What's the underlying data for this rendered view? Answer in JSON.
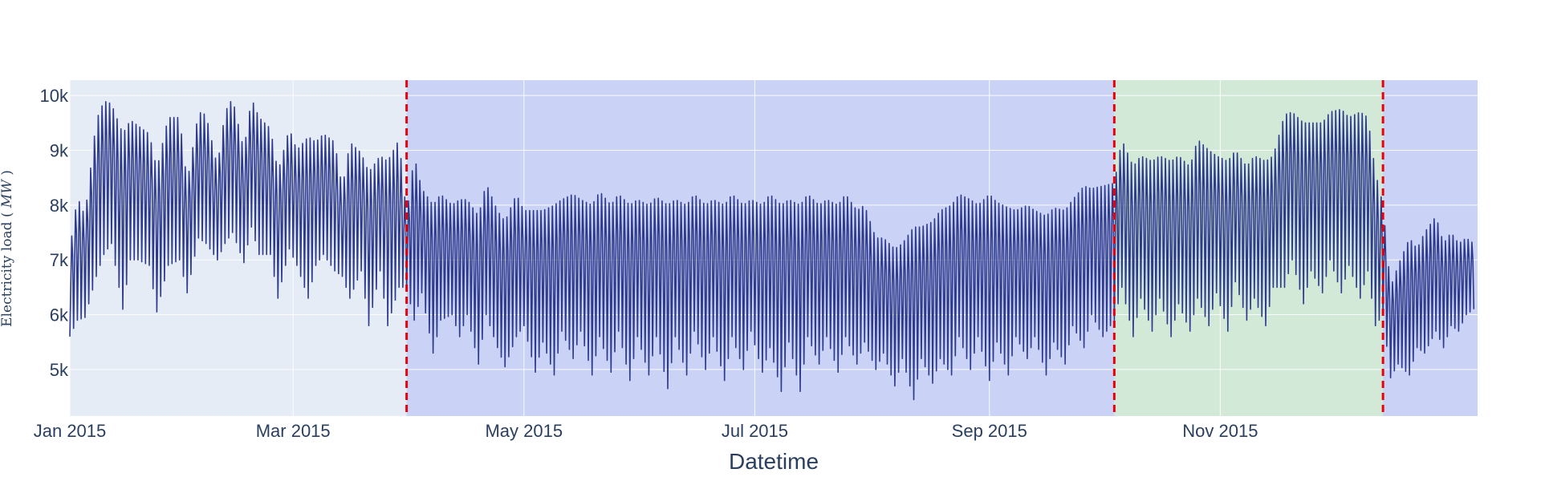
{
  "chart_data": {
    "type": "line",
    "title": "",
    "xlabel": "Datetime",
    "ylabel": "Electricity load (MW)",
    "ylabel_parts": {
      "main": "Electricity load",
      "unit": "MW"
    },
    "xlim": [
      "2015-01-01",
      "2016-01-08"
    ],
    "ylim": [
      4150,
      10280
    ],
    "grid": true,
    "legend": "none",
    "x_ticks": [
      {
        "date": "2015-01-01",
        "label": "Jan 2015"
      },
      {
        "date": "2015-03-01",
        "label": "Mar 2015"
      },
      {
        "date": "2015-05-01",
        "label": "May 2015"
      },
      {
        "date": "2015-07-01",
        "label": "Jul 2015"
      },
      {
        "date": "2015-09-01",
        "label": "Sep 2015"
      },
      {
        "date": "2015-11-01",
        "label": "Nov 2015"
      }
    ],
    "y_ticks": [
      {
        "value": 5000,
        "label": "5k"
      },
      {
        "value": 6000,
        "label": "6k"
      },
      {
        "value": 7000,
        "label": "7k"
      },
      {
        "value": 8000,
        "label": "8k"
      },
      {
        "value": 9000,
        "label": "9k"
      },
      {
        "value": 10000,
        "label": "10k"
      }
    ],
    "shaded_regions": [
      {
        "start": "2015-03-31",
        "end": "2015-10-04",
        "color": "#b4bdf5",
        "opacity": 0.55
      },
      {
        "start": "2015-10-04",
        "end": "2015-12-14",
        "color": "#c2e8c0",
        "opacity": 0.55
      },
      {
        "start": "2015-12-14",
        "end": "2016-01-08",
        "color": "#b4bdf5",
        "opacity": 0.55
      }
    ],
    "vertical_lines": [
      {
        "date": "2015-03-31",
        "color": "#e8000b",
        "style": "dashed"
      },
      {
        "date": "2015-10-04",
        "color": "#e8000b",
        "style": "dashed"
      },
      {
        "date": "2015-12-14",
        "color": "#e8000b",
        "style": "dashed"
      }
    ],
    "series": [
      {
        "color": "#2e3a8c",
        "sampling": "daily envelope: low and high load per day",
        "points": [
          {
            "x": "2015-01-01",
            "low": 5600,
            "high": 7200
          },
          {
            "x": "2015-01-03",
            "low": 5900,
            "high": 8150
          },
          {
            "x": "2015-01-05",
            "low": 5950,
            "high": 7800
          },
          {
            "x": "2015-01-08",
            "low": 6700,
            "high": 9550
          },
          {
            "x": "2015-01-10",
            "low": 7100,
            "high": 9900
          },
          {
            "x": "2015-01-12",
            "low": 7300,
            "high": 9850
          },
          {
            "x": "2015-01-15",
            "low": 6100,
            "high": 9300
          },
          {
            "x": "2015-01-17",
            "low": 7000,
            "high": 9550
          },
          {
            "x": "2015-01-19",
            "low": 7000,
            "high": 9450
          },
          {
            "x": "2015-01-22",
            "low": 6900,
            "high": 9300
          },
          {
            "x": "2015-01-24",
            "low": 6050,
            "high": 8650
          },
          {
            "x": "2015-01-27",
            "low": 6900,
            "high": 9600
          },
          {
            "x": "2015-01-30",
            "low": 7000,
            "high": 9600
          },
          {
            "x": "2015-02-01",
            "low": 6400,
            "high": 8400
          },
          {
            "x": "2015-02-04",
            "low": 7400,
            "high": 9700
          },
          {
            "x": "2015-02-06",
            "low": 7300,
            "high": 9650
          },
          {
            "x": "2015-02-09",
            "low": 7000,
            "high": 8700
          },
          {
            "x": "2015-02-11",
            "low": 7300,
            "high": 9700
          },
          {
            "x": "2015-02-13",
            "low": 7500,
            "high": 9950
          },
          {
            "x": "2015-02-16",
            "low": 6950,
            "high": 9000
          },
          {
            "x": "2015-02-18",
            "low": 7600,
            "high": 9950
          },
          {
            "x": "2015-02-20",
            "low": 7100,
            "high": 9600
          },
          {
            "x": "2015-02-23",
            "low": 7100,
            "high": 9400
          },
          {
            "x": "2015-02-25",
            "low": 6300,
            "high": 8600
          },
          {
            "x": "2015-02-28",
            "low": 7200,
            "high": 9400
          },
          {
            "x": "2015-03-02",
            "low": 6900,
            "high": 9000
          },
          {
            "x": "2015-03-05",
            "low": 6300,
            "high": 9250
          },
          {
            "x": "2015-03-07",
            "low": 6900,
            "high": 9150
          },
          {
            "x": "2015-03-09",
            "low": 7100,
            "high": 9300
          },
          {
            "x": "2015-03-12",
            "low": 6800,
            "high": 9150
          },
          {
            "x": "2015-03-14",
            "low": 6700,
            "high": 8300
          },
          {
            "x": "2015-03-16",
            "low": 6300,
            "high": 9150
          },
          {
            "x": "2015-03-19",
            "low": 6800,
            "high": 8950
          },
          {
            "x": "2015-03-21",
            "low": 5800,
            "high": 8600
          },
          {
            "x": "2015-03-24",
            "low": 6800,
            "high": 8900
          },
          {
            "x": "2015-03-26",
            "low": 5800,
            "high": 8800
          },
          {
            "x": "2015-03-29",
            "low": 6500,
            "high": 9200
          },
          {
            "x": "2015-03-31",
            "low": 6500,
            "high": 7800
          },
          {
            "x": "2015-04-02",
            "low": 5900,
            "high": 8900
          },
          {
            "x": "2015-04-04",
            "low": 6400,
            "high": 8300
          },
          {
            "x": "2015-04-07",
            "low": 5300,
            "high": 8000
          },
          {
            "x": "2015-04-09",
            "low": 5900,
            "high": 8200
          },
          {
            "x": "2015-04-12",
            "low": 6000,
            "high": 8000
          },
          {
            "x": "2015-04-14",
            "low": 5600,
            "high": 8100
          },
          {
            "x": "2015-04-16",
            "low": 6000,
            "high": 8100
          },
          {
            "x": "2015-04-19",
            "low": 5100,
            "high": 7800
          },
          {
            "x": "2015-04-21",
            "low": 6000,
            "high": 8400
          },
          {
            "x": "2015-04-24",
            "low": 5400,
            "high": 7900
          },
          {
            "x": "2015-04-26",
            "low": 5050,
            "high": 7700
          },
          {
            "x": "2015-04-29",
            "low": 5600,
            "high": 8200
          },
          {
            "x": "2015-05-01",
            "low": 5800,
            "high": 7900
          },
          {
            "x": "2015-05-04",
            "low": 4950,
            "high": 7900
          },
          {
            "x": "2015-05-06",
            "low": 5500,
            "high": 7900
          },
          {
            "x": "2015-05-09",
            "low": 4900,
            "high": 8000
          },
          {
            "x": "2015-05-11",
            "low": 5700,
            "high": 8100
          },
          {
            "x": "2015-05-14",
            "low": 5200,
            "high": 8200
          },
          {
            "x": "2015-05-16",
            "low": 5700,
            "high": 8100
          },
          {
            "x": "2015-05-19",
            "low": 4900,
            "high": 8000
          },
          {
            "x": "2015-05-21",
            "low": 5600,
            "high": 8250
          },
          {
            "x": "2015-05-24",
            "low": 4950,
            "high": 8000
          },
          {
            "x": "2015-05-26",
            "low": 5700,
            "high": 8200
          },
          {
            "x": "2015-05-29",
            "low": 4800,
            "high": 8000
          },
          {
            "x": "2015-05-31",
            "low": 5600,
            "high": 8100
          },
          {
            "x": "2015-06-03",
            "low": 4900,
            "high": 8000
          },
          {
            "x": "2015-06-05",
            "low": 5600,
            "high": 8150
          },
          {
            "x": "2015-06-08",
            "low": 4650,
            "high": 8000
          },
          {
            "x": "2015-06-10",
            "low": 5600,
            "high": 8100
          },
          {
            "x": "2015-06-13",
            "low": 4900,
            "high": 8000
          },
          {
            "x": "2015-06-15",
            "low": 5700,
            "high": 8200
          },
          {
            "x": "2015-06-18",
            "low": 5000,
            "high": 8000
          },
          {
            "x": "2015-06-20",
            "low": 5600,
            "high": 8100
          },
          {
            "x": "2015-06-23",
            "low": 4800,
            "high": 8000
          },
          {
            "x": "2015-06-25",
            "low": 5600,
            "high": 8200
          },
          {
            "x": "2015-06-28",
            "low": 5000,
            "high": 8000
          },
          {
            "x": "2015-06-30",
            "low": 5700,
            "high": 8100
          },
          {
            "x": "2015-07-03",
            "low": 4950,
            "high": 8000
          },
          {
            "x": "2015-07-05",
            "low": 5400,
            "high": 8200
          },
          {
            "x": "2015-07-08",
            "low": 4600,
            "high": 8000
          },
          {
            "x": "2015-07-10",
            "low": 5500,
            "high": 8100
          },
          {
            "x": "2015-07-13",
            "low": 4600,
            "high": 8000
          },
          {
            "x": "2015-07-15",
            "low": 5600,
            "high": 8200
          },
          {
            "x": "2015-07-18",
            "low": 5100,
            "high": 8000
          },
          {
            "x": "2015-07-20",
            "low": 5600,
            "high": 8100
          },
          {
            "x": "2015-07-23",
            "low": 4950,
            "high": 8000
          },
          {
            "x": "2015-07-25",
            "low": 5600,
            "high": 8200
          },
          {
            "x": "2015-07-28",
            "low": 5100,
            "high": 7900
          },
          {
            "x": "2015-07-30",
            "low": 5500,
            "high": 8000
          },
          {
            "x": "2015-08-02",
            "low": 5000,
            "high": 7400
          },
          {
            "x": "2015-08-04",
            "low": 5300,
            "high": 7400
          },
          {
            "x": "2015-08-07",
            "low": 4700,
            "high": 7200
          },
          {
            "x": "2015-08-09",
            "low": 5200,
            "high": 7300
          },
          {
            "x": "2015-08-12",
            "low": 4450,
            "high": 7600
          },
          {
            "x": "2015-08-14",
            "low": 5200,
            "high": 7600
          },
          {
            "x": "2015-08-17",
            "low": 4750,
            "high": 7700
          },
          {
            "x": "2015-08-19",
            "low": 5200,
            "high": 7900
          },
          {
            "x": "2015-08-22",
            "low": 4900,
            "high": 8000
          },
          {
            "x": "2015-08-24",
            "low": 5600,
            "high": 8200
          },
          {
            "x": "2015-08-27",
            "low": 5000,
            "high": 8100
          },
          {
            "x": "2015-08-29",
            "low": 5600,
            "high": 8000
          },
          {
            "x": "2015-09-01",
            "low": 4800,
            "high": 8200
          },
          {
            "x": "2015-09-03",
            "low": 5500,
            "high": 8050
          },
          {
            "x": "2015-09-06",
            "low": 4900,
            "high": 7950
          },
          {
            "x": "2015-09-08",
            "low": 5600,
            "high": 7900
          },
          {
            "x": "2015-09-11",
            "low": 5200,
            "high": 8000
          },
          {
            "x": "2015-09-13",
            "low": 5600,
            "high": 7900
          },
          {
            "x": "2015-09-16",
            "low": 4900,
            "high": 7800
          },
          {
            "x": "2015-09-18",
            "low": 5500,
            "high": 7950
          },
          {
            "x": "2015-09-21",
            "low": 5100,
            "high": 7900
          },
          {
            "x": "2015-09-23",
            "low": 5800,
            "high": 8100
          },
          {
            "x": "2015-09-26",
            "low": 5400,
            "high": 8350
          },
          {
            "x": "2015-09-28",
            "low": 6000,
            "high": 8300
          },
          {
            "x": "2015-10-01",
            "low": 5600,
            "high": 8350
          },
          {
            "x": "2015-10-04",
            "low": 5900,
            "high": 8400
          },
          {
            "x": "2015-10-06",
            "low": 6500,
            "high": 9200
          },
          {
            "x": "2015-10-09",
            "low": 5600,
            "high": 8700
          },
          {
            "x": "2015-10-11",
            "low": 6300,
            "high": 8900
          },
          {
            "x": "2015-10-14",
            "low": 5700,
            "high": 8800
          },
          {
            "x": "2015-10-16",
            "low": 6300,
            "high": 8900
          },
          {
            "x": "2015-10-19",
            "low": 5600,
            "high": 8800
          },
          {
            "x": "2015-10-21",
            "low": 6200,
            "high": 8900
          },
          {
            "x": "2015-10-24",
            "low": 5700,
            "high": 8700
          },
          {
            "x": "2015-10-26",
            "low": 6300,
            "high": 9200
          },
          {
            "x": "2015-10-29",
            "low": 5800,
            "high": 9000
          },
          {
            "x": "2015-10-31",
            "low": 6400,
            "high": 8900
          },
          {
            "x": "2015-11-03",
            "low": 5700,
            "high": 8800
          },
          {
            "x": "2015-11-05",
            "low": 6600,
            "high": 9000
          },
          {
            "x": "2015-11-08",
            "low": 5900,
            "high": 8700
          },
          {
            "x": "2015-11-10",
            "low": 6300,
            "high": 8900
          },
          {
            "x": "2015-11-13",
            "low": 5800,
            "high": 8800
          },
          {
            "x": "2015-11-15",
            "low": 6500,
            "high": 8900
          },
          {
            "x": "2015-11-18",
            "low": 6500,
            "high": 9650
          },
          {
            "x": "2015-11-20",
            "low": 7000,
            "high": 9700
          },
          {
            "x": "2015-11-23",
            "low": 6200,
            "high": 9500
          },
          {
            "x": "2015-11-25",
            "low": 6800,
            "high": 9500
          },
          {
            "x": "2015-11-28",
            "low": 6400,
            "high": 9500
          },
          {
            "x": "2015-11-30",
            "low": 7000,
            "high": 9700
          },
          {
            "x": "2015-12-03",
            "low": 6400,
            "high": 9750
          },
          {
            "x": "2015-12-05",
            "low": 6900,
            "high": 9600
          },
          {
            "x": "2015-12-08",
            "low": 6300,
            "high": 9700
          },
          {
            "x": "2015-12-10",
            "low": 6800,
            "high": 9600
          },
          {
            "x": "2015-12-12",
            "low": 5800,
            "high": 8600
          },
          {
            "x": "2015-12-14",
            "low": 6000,
            "high": 8000
          },
          {
            "x": "2015-12-16",
            "low": 4850,
            "high": 6500
          },
          {
            "x": "2015-12-18",
            "low": 5100,
            "high": 6900
          },
          {
            "x": "2015-12-21",
            "low": 4900,
            "high": 7400
          },
          {
            "x": "2015-12-23",
            "low": 5400,
            "high": 7200
          },
          {
            "x": "2015-12-25",
            "low": 5300,
            "high": 7500
          },
          {
            "x": "2015-12-28",
            "low": 5700,
            "high": 7800
          },
          {
            "x": "2015-12-30",
            "low": 5400,
            "high": 7300
          },
          {
            "x": "2016-01-01",
            "low": 5800,
            "high": 7500
          },
          {
            "x": "2016-01-03",
            "low": 5700,
            "high": 7300
          },
          {
            "x": "2016-01-05",
            "low": 6000,
            "high": 7400
          },
          {
            "x": "2016-01-07",
            "low": 6100,
            "high": 7300
          }
        ]
      }
    ]
  }
}
